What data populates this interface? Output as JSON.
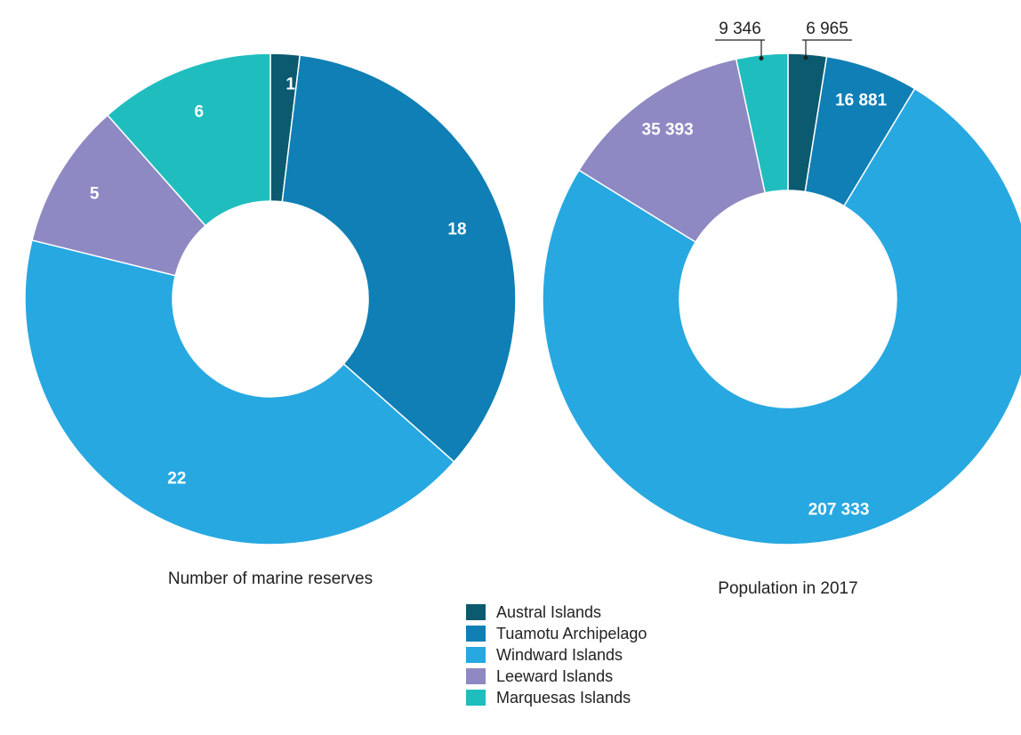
{
  "legend": {
    "items": [
      {
        "label": "Austral Islands",
        "color": "#0b5a6f"
      },
      {
        "label": "Tuamotu Archipelago",
        "color": "#0f7fb5"
      },
      {
        "label": "Windward Islands",
        "color": "#27a8e1"
      },
      {
        "label": "Leeward Islands",
        "color": "#8e89c2"
      },
      {
        "label": "Marquesas Islands",
        "color": "#20bdbe"
      }
    ]
  },
  "chart_data": [
    {
      "type": "pie",
      "title": "Number of marine reserves",
      "categories": [
        "Austral Islands",
        "Tuamotu Archipelago",
        "Windward Islands",
        "Leeward Islands",
        "Marquesas Islands"
      ],
      "values": [
        1,
        18,
        22,
        5,
        6
      ],
      "labels": [
        "1",
        "18",
        "22",
        "5",
        "6"
      ],
      "colors": [
        "#0b5a6f",
        "#0f7fb5",
        "#27a8e1",
        "#8e89c2",
        "#20bdbe"
      ]
    },
    {
      "type": "pie",
      "title": "Population in 2017",
      "categories": [
        "Austral Islands",
        "Tuamotu Archipelago",
        "Windward Islands",
        "Leeward Islands",
        "Marquesas Islands"
      ],
      "values": [
        6965,
        16881,
        207333,
        35393,
        9346
      ],
      "labels": [
        "6 965",
        "16 881",
        "207 333",
        "35 393",
        "9 346"
      ],
      "colors": [
        "#0b5a6f",
        "#0f7fb5",
        "#27a8e1",
        "#8e89c2",
        "#20bdbe"
      ]
    }
  ]
}
